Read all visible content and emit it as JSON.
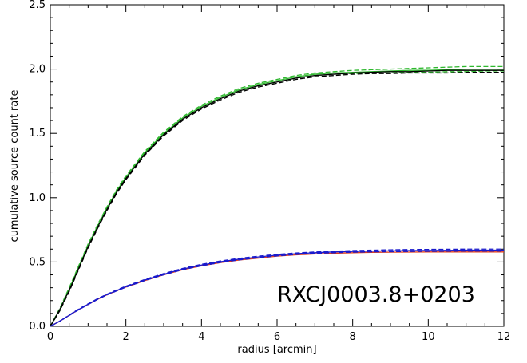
{
  "chart_data": {
    "type": "line",
    "title": "",
    "xlabel": "radius [arcmin]",
    "ylabel": "cumulative source count rate",
    "xlim": [
      0,
      12
    ],
    "ylim": [
      0,
      2.5
    ],
    "xticks": [
      0,
      2,
      4,
      6,
      8,
      10,
      12
    ],
    "xtick_labels": [
      "0",
      "2",
      "4",
      "6",
      "8",
      "10",
      "12"
    ],
    "yticks": [
      0,
      0.5,
      1.0,
      1.5,
      2.0,
      2.5
    ],
    "ytick_labels": [
      "0.0",
      "0.5",
      "1.0",
      "1.5",
      "2.0",
      "2.5"
    ],
    "grid": false,
    "legend": "none",
    "annotation": "RXCJ0003.8+0203",
    "x": [
      0,
      0.25,
      0.5,
      0.75,
      1,
      1.25,
      1.5,
      1.75,
      2,
      2.5,
      3,
      3.5,
      4,
      4.5,
      5,
      5.5,
      6,
      6.5,
      7,
      7.5,
      8,
      8.5,
      9,
      9.5,
      10,
      10.5,
      11,
      11.5,
      12
    ],
    "series": [
      {
        "color": "#2eb82e",
        "dash": "solid",
        "values": [
          0.0,
          0.13,
          0.29,
          0.46,
          0.63,
          0.78,
          0.92,
          1.05,
          1.16,
          1.35,
          1.5,
          1.62,
          1.71,
          1.78,
          1.84,
          1.88,
          1.91,
          1.94,
          1.96,
          1.97,
          1.975,
          1.98,
          1.985,
          1.99,
          1.99,
          1.995,
          2.0,
          2.0,
          2.0
        ]
      },
      {
        "color": "#2eb82e",
        "dash": "dashed",
        "values": [
          0.0,
          0.14,
          0.3,
          0.47,
          0.64,
          0.79,
          0.93,
          1.06,
          1.17,
          1.36,
          1.51,
          1.63,
          1.72,
          1.79,
          1.85,
          1.89,
          1.92,
          1.95,
          1.97,
          1.98,
          1.99,
          1.995,
          2.0,
          2.005,
          2.01,
          2.015,
          2.02,
          2.02,
          2.02
        ]
      },
      {
        "color": "#2eb82e",
        "dash": "dashed",
        "values": [
          0.0,
          0.12,
          0.28,
          0.45,
          0.62,
          0.77,
          0.91,
          1.04,
          1.15,
          1.34,
          1.49,
          1.61,
          1.7,
          1.77,
          1.83,
          1.87,
          1.9,
          1.93,
          1.95,
          1.96,
          1.965,
          1.97,
          1.97,
          1.975,
          1.975,
          1.98,
          1.98,
          1.985,
          1.985
        ]
      },
      {
        "color": "#000000",
        "dash": "solid",
        "values": [
          0.0,
          0.13,
          0.28,
          0.45,
          0.62,
          0.77,
          0.91,
          1.04,
          1.15,
          1.34,
          1.49,
          1.61,
          1.7,
          1.77,
          1.83,
          1.87,
          1.9,
          1.93,
          1.95,
          1.96,
          1.97,
          1.975,
          1.98,
          1.98,
          1.985,
          1.99,
          1.99,
          1.99,
          1.99
        ]
      },
      {
        "color": "#000000",
        "dash": "dashed",
        "values": [
          0.0,
          0.12,
          0.27,
          0.44,
          0.61,
          0.76,
          0.9,
          1.03,
          1.14,
          1.33,
          1.48,
          1.6,
          1.69,
          1.76,
          1.82,
          1.86,
          1.89,
          1.92,
          1.94,
          1.95,
          1.96,
          1.965,
          1.965,
          1.97,
          1.97,
          1.97,
          1.975,
          1.975,
          1.975
        ]
      },
      {
        "color": "#e03c1a",
        "dash": "solid",
        "values": [
          0.0,
          0.04,
          0.085,
          0.13,
          0.17,
          0.21,
          0.245,
          0.275,
          0.305,
          0.355,
          0.4,
          0.44,
          0.47,
          0.495,
          0.515,
          0.53,
          0.545,
          0.555,
          0.562,
          0.568,
          0.572,
          0.575,
          0.576,
          0.577,
          0.578,
          0.578,
          0.578,
          0.578,
          0.578
        ]
      },
      {
        "color": "#1a1acc",
        "dash": "solid",
        "values": [
          0.0,
          0.04,
          0.086,
          0.131,
          0.172,
          0.212,
          0.247,
          0.278,
          0.308,
          0.36,
          0.405,
          0.445,
          0.476,
          0.502,
          0.522,
          0.539,
          0.553,
          0.564,
          0.572,
          0.578,
          0.582,
          0.585,
          0.587,
          0.589,
          0.59,
          0.591,
          0.592,
          0.592,
          0.592
        ]
      },
      {
        "color": "#1a1acc",
        "dash": "dashed",
        "values": [
          0.0,
          0.041,
          0.088,
          0.134,
          0.175,
          0.215,
          0.25,
          0.282,
          0.312,
          0.364,
          0.41,
          0.45,
          0.482,
          0.508,
          0.528,
          0.545,
          0.559,
          0.57,
          0.578,
          0.584,
          0.589,
          0.592,
          0.595,
          0.597,
          0.598,
          0.599,
          0.6,
          0.6,
          0.6
        ]
      },
      {
        "color": "#1a1acc",
        "dash": "dashed",
        "values": [
          0.0,
          0.039,
          0.084,
          0.128,
          0.169,
          0.209,
          0.244,
          0.274,
          0.304,
          0.356,
          0.4,
          0.44,
          0.47,
          0.496,
          0.516,
          0.533,
          0.547,
          0.558,
          0.566,
          0.572,
          0.576,
          0.579,
          0.58,
          0.582,
          0.583,
          0.584,
          0.585,
          0.585,
          0.585
        ]
      }
    ]
  }
}
